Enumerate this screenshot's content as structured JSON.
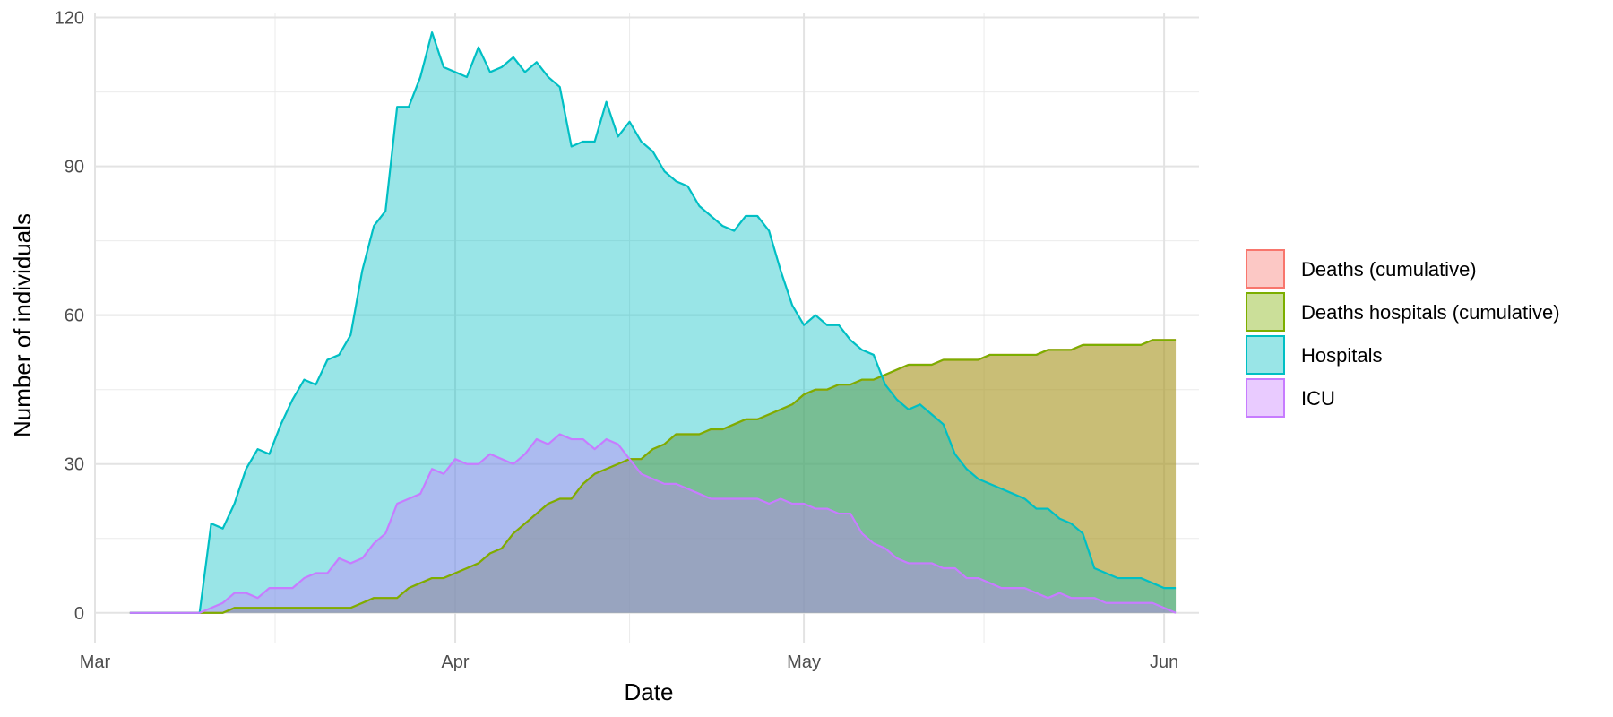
{
  "chart_data": {
    "type": "area",
    "xlabel": "Date",
    "ylabel": "Number of individuals",
    "x_start": "2020-03-04",
    "x_end": "2020-06-03",
    "xlim": [
      "2020-03-01",
      "2020-06-04"
    ],
    "ylim": [
      -6,
      121
    ],
    "x_ticks": [
      {
        "date": "2020-03-01",
        "label": "Mar"
      },
      {
        "date": "2020-04-01",
        "label": "Apr"
      },
      {
        "date": "2020-05-01",
        "label": "May"
      },
      {
        "date": "2020-06-01",
        "label": "Jun"
      }
    ],
    "y_ticks": [
      {
        "value": 0,
        "label": "0"
      },
      {
        "value": 30,
        "label": "30"
      },
      {
        "value": 60,
        "label": "60"
      },
      {
        "value": 90,
        "label": "90"
      },
      {
        "value": 120,
        "label": "120"
      }
    ],
    "grid": true,
    "legend_position": "right",
    "series": [
      {
        "name": "Deaths (cumulative)",
        "line_color": "#F8766D",
        "fill_color": "#F8766D",
        "values": [
          0,
          0,
          0,
          0,
          0,
          0,
          0,
          0,
          0,
          1,
          1,
          1,
          1,
          1,
          1,
          1,
          1,
          1,
          1,
          1,
          2,
          3,
          3,
          3,
          5,
          6,
          7,
          7,
          8,
          9,
          10,
          12,
          13,
          16,
          18,
          20,
          22,
          23,
          23,
          26,
          28,
          29,
          30,
          31,
          31,
          33,
          34,
          36,
          36,
          36,
          37,
          37,
          38,
          39,
          39,
          40,
          41,
          42,
          44,
          45,
          45,
          46,
          46,
          47,
          47,
          48,
          49,
          50,
          50,
          50,
          51,
          51,
          51,
          51,
          52,
          52,
          52,
          52,
          52,
          53,
          53,
          53,
          54,
          54,
          54,
          54,
          54,
          54,
          55,
          55,
          55
        ]
      },
      {
        "name": "Deaths hospitals (cumulative)",
        "line_color": "#7CAE00",
        "fill_color": "#7CAE00",
        "values": [
          0,
          0,
          0,
          0,
          0,
          0,
          0,
          0,
          0,
          1,
          1,
          1,
          1,
          1,
          1,
          1,
          1,
          1,
          1,
          1,
          2,
          3,
          3,
          3,
          5,
          6,
          7,
          7,
          8,
          9,
          10,
          12,
          13,
          16,
          18,
          20,
          22,
          23,
          23,
          26,
          28,
          29,
          30,
          31,
          31,
          33,
          34,
          36,
          36,
          36,
          37,
          37,
          38,
          39,
          39,
          40,
          41,
          42,
          44,
          45,
          45,
          46,
          46,
          47,
          47,
          48,
          49,
          50,
          50,
          50,
          51,
          51,
          51,
          51,
          52,
          52,
          52,
          52,
          52,
          53,
          53,
          53,
          54,
          54,
          54,
          54,
          54,
          54,
          55,
          55,
          55
        ]
      },
      {
        "name": "Hospitals",
        "line_color": "#00BFC4",
        "fill_color": "#00BFC4",
        "values": [
          0,
          0,
          0,
          0,
          0,
          0,
          0,
          18,
          17,
          22,
          29,
          33,
          32,
          38,
          43,
          47,
          46,
          51,
          52,
          56,
          69,
          78,
          81,
          102,
          102,
          108,
          117,
          110,
          109,
          108,
          114,
          109,
          110,
          112,
          109,
          111,
          108,
          106,
          94,
          95,
          95,
          103,
          96,
          99,
          95,
          93,
          89,
          87,
          86,
          82,
          80,
          78,
          77,
          80,
          80,
          77,
          69,
          62,
          58,
          60,
          58,
          58,
          55,
          53,
          52,
          46,
          43,
          41,
          42,
          40,
          38,
          32,
          29,
          27,
          26,
          25,
          24,
          23,
          21,
          21,
          19,
          18,
          16,
          9,
          8,
          7,
          7,
          7,
          6,
          5,
          5
        ]
      },
      {
        "name": "ICU",
        "line_color": "#C77CFF",
        "fill_color": "#C77CFF",
        "values": [
          0,
          0,
          0,
          0,
          0,
          0,
          0,
          1,
          2,
          4,
          4,
          3,
          5,
          5,
          5,
          7,
          8,
          8,
          11,
          10,
          11,
          14,
          16,
          22,
          23,
          24,
          29,
          28,
          31,
          30,
          30,
          32,
          31,
          30,
          32,
          35,
          34,
          36,
          35,
          35,
          33,
          35,
          34,
          31,
          28,
          27,
          26,
          26,
          25,
          24,
          23,
          23,
          23,
          23,
          23,
          22,
          23,
          22,
          22,
          21,
          21,
          20,
          20,
          16,
          14,
          13,
          11,
          10,
          10,
          10,
          9,
          9,
          7,
          7,
          6,
          5,
          5,
          5,
          4,
          3,
          4,
          3,
          3,
          3,
          2,
          2,
          2,
          2,
          2,
          1,
          0
        ]
      }
    ]
  }
}
